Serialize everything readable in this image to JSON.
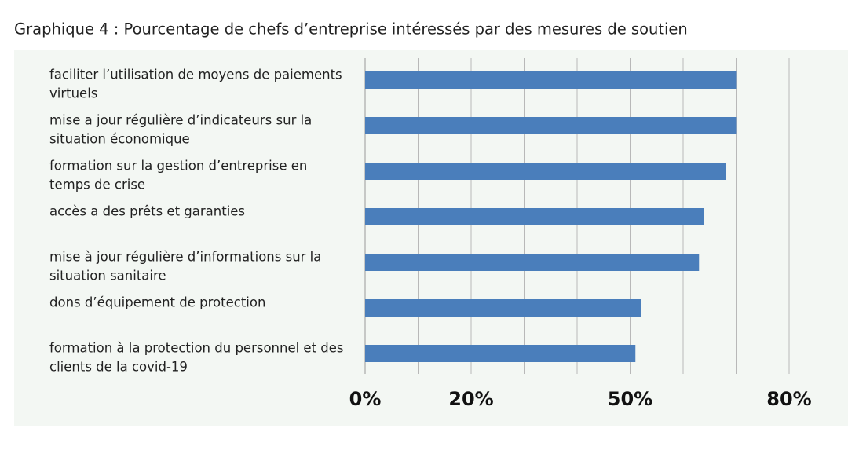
{
  "chart_data": {
    "type": "barh",
    "title": "Graphique 4 : Pourcentage de chefs d’entreprise intéressés par des mesures de soutien",
    "categories": [
      [
        "faciliter l’utilisation de moyens de paiements",
        "virtuels"
      ],
      [
        "mise a jour régulière d’indicateurs sur la",
        "situation économique"
      ],
      [
        "formation sur la gestion d’entreprise en",
        "temps de crise"
      ],
      [
        "accès a des prêts et garanties"
      ],
      [
        "mise à jour régulière d’informations sur la",
        "situation sanitaire"
      ],
      [
        "dons d’équipement de protection"
      ],
      [
        "formation à la protection du personnel et des",
        "clients de la covid-19"
      ]
    ],
    "values": [
      70,
      70,
      68,
      64,
      63,
      52,
      51
    ],
    "color": "#4a7ebb",
    "xlim": [
      0,
      80
    ],
    "xticks": [
      {
        "value": 0,
        "label": "0%"
      },
      {
        "value": 20,
        "label": "20%"
      },
      {
        "value": 50,
        "label": "50%"
      },
      {
        "value": 80,
        "label": "80%"
      }
    ],
    "minor_xticks": [
      10,
      30,
      40,
      60,
      70
    ],
    "grid": true
  }
}
